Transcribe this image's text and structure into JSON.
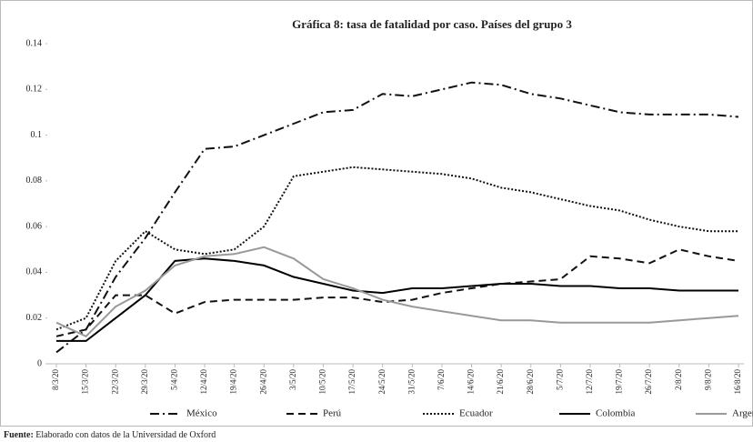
{
  "chart_data": {
    "type": "line",
    "title": "Gráfica 8: tasa de fatalidad por caso. Países del grupo 3",
    "categories": [
      "8/3/20",
      "15/3/20",
      "22/3/20",
      "29/3/20",
      "5/4/20",
      "12/4/20",
      "19/4/20",
      "26/4/20",
      "3/5/20",
      "10/5/20",
      "17/5/20",
      "24/5/20",
      "31/5/20",
      "7/6/20",
      "14/6/20",
      "21/6/20",
      "28/6/20",
      "5/7/20",
      "12/7/20",
      "19/7/20",
      "26/7/20",
      "2/8/20",
      "9/8/20",
      "16/8/20"
    ],
    "series": [
      {
        "name": "México",
        "color": "#111111",
        "dash": "10 4 2 4",
        "values": [
          0.005,
          0.015,
          0.038,
          0.055,
          0.075,
          0.094,
          0.095,
          0.1,
          0.105,
          0.11,
          0.111,
          0.118,
          0.117,
          0.12,
          0.123,
          0.122,
          0.118,
          0.116,
          0.113,
          0.11,
          0.109,
          0.109,
          0.109,
          0.108
        ]
      },
      {
        "name": "Perú",
        "color": "#111111",
        "dash": "8 5",
        "values": [
          0.012,
          0.015,
          0.03,
          0.03,
          0.022,
          0.027,
          0.028,
          0.028,
          0.028,
          0.029,
          0.029,
          0.027,
          0.028,
          0.031,
          0.033,
          0.035,
          0.036,
          0.037,
          0.047,
          0.046,
          0.044,
          0.05,
          0.047,
          0.045
        ]
      },
      {
        "name": "Ecuador",
        "color": "#111111",
        "dash": "2 2",
        "values": [
          0.015,
          0.02,
          0.045,
          0.058,
          0.05,
          0.048,
          0.05,
          0.06,
          0.082,
          0.084,
          0.086,
          0.085,
          0.084,
          0.083,
          0.081,
          0.077,
          0.075,
          0.072,
          0.069,
          0.067,
          0.063,
          0.06,
          0.058,
          0.058
        ]
      },
      {
        "name": "Colombia",
        "color": "#000000",
        "dash": "none",
        "values": [
          0.01,
          0.01,
          0.02,
          0.03,
          0.045,
          0.046,
          0.045,
          0.043,
          0.038,
          0.035,
          0.032,
          0.031,
          0.033,
          0.033,
          0.034,
          0.035,
          0.035,
          0.034,
          0.034,
          0.033,
          0.033,
          0.032,
          0.032,
          0.032
        ]
      },
      {
        "name": "Argentina",
        "color": "#999999",
        "dash": "none",
        "values": [
          0.018,
          0.012,
          0.025,
          0.032,
          0.043,
          0.047,
          0.048,
          0.051,
          0.046,
          0.037,
          0.033,
          0.028,
          0.025,
          0.023,
          0.021,
          0.019,
          0.019,
          0.018,
          0.018,
          0.018,
          0.018,
          0.019,
          0.02,
          0.021
        ]
      }
    ],
    "ylim": [
      0,
      0.14
    ],
    "yticks": [
      0,
      0.02,
      0.04,
      0.06,
      0.08,
      0.1,
      0.12,
      0.14
    ],
    "grid": false,
    "source_label": "Fuente:",
    "source_text": "Elaborado con datos de la Universidad de Oxford"
  }
}
